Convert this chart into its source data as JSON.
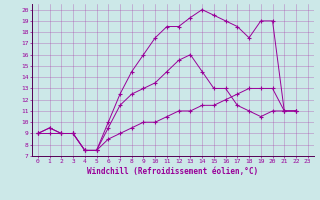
{
  "xlabel": "Windchill (Refroidissement éolien,°C)",
  "bg_color": "#cce8e8",
  "line_color": "#990099",
  "xlim": [
    -0.5,
    23.5
  ],
  "ylim": [
    7,
    20.5
  ],
  "xticks": [
    0,
    1,
    2,
    3,
    4,
    5,
    6,
    7,
    8,
    9,
    10,
    11,
    12,
    13,
    14,
    15,
    16,
    17,
    18,
    19,
    20,
    21,
    22,
    23
  ],
  "yticks": [
    7,
    8,
    9,
    10,
    11,
    12,
    13,
    14,
    15,
    16,
    17,
    18,
    19,
    20
  ],
  "series": [
    {
      "x": [
        0,
        1,
        2,
        3,
        4,
        5,
        6,
        7,
        8,
        9,
        10,
        11,
        12,
        13,
        14,
        15,
        16,
        17,
        18,
        19,
        20,
        21,
        22
      ],
      "y": [
        9,
        9.5,
        9,
        9,
        7.5,
        7.5,
        10,
        12.5,
        14.5,
        16,
        17.5,
        18.5,
        18.5,
        19.3,
        20,
        19.5,
        19,
        18.5,
        17.5,
        19,
        19,
        11,
        11
      ]
    },
    {
      "x": [
        0,
        1,
        2,
        3,
        4,
        5,
        6,
        7,
        8,
        9,
        10,
        11,
        12,
        13,
        14,
        15,
        16,
        17,
        18,
        19,
        20,
        21,
        22
      ],
      "y": [
        9,
        9.5,
        9,
        9,
        7.5,
        7.5,
        9.5,
        11.5,
        12.5,
        13,
        13.5,
        14.5,
        15.5,
        16,
        14.5,
        13,
        13,
        11.5,
        11,
        10.5,
        11,
        11,
        11
      ]
    },
    {
      "x": [
        0,
        1,
        2,
        3,
        4,
        5,
        6,
        7,
        8,
        9,
        10,
        11,
        12,
        13,
        14,
        15,
        16,
        17,
        18,
        19,
        20,
        21,
        22
      ],
      "y": [
        9,
        9,
        9,
        9,
        7.5,
        7.5,
        8.5,
        9,
        9.5,
        10,
        10,
        10.5,
        11,
        11,
        11.5,
        11.5,
        12,
        12.5,
        13,
        13,
        13,
        11,
        11
      ]
    }
  ]
}
